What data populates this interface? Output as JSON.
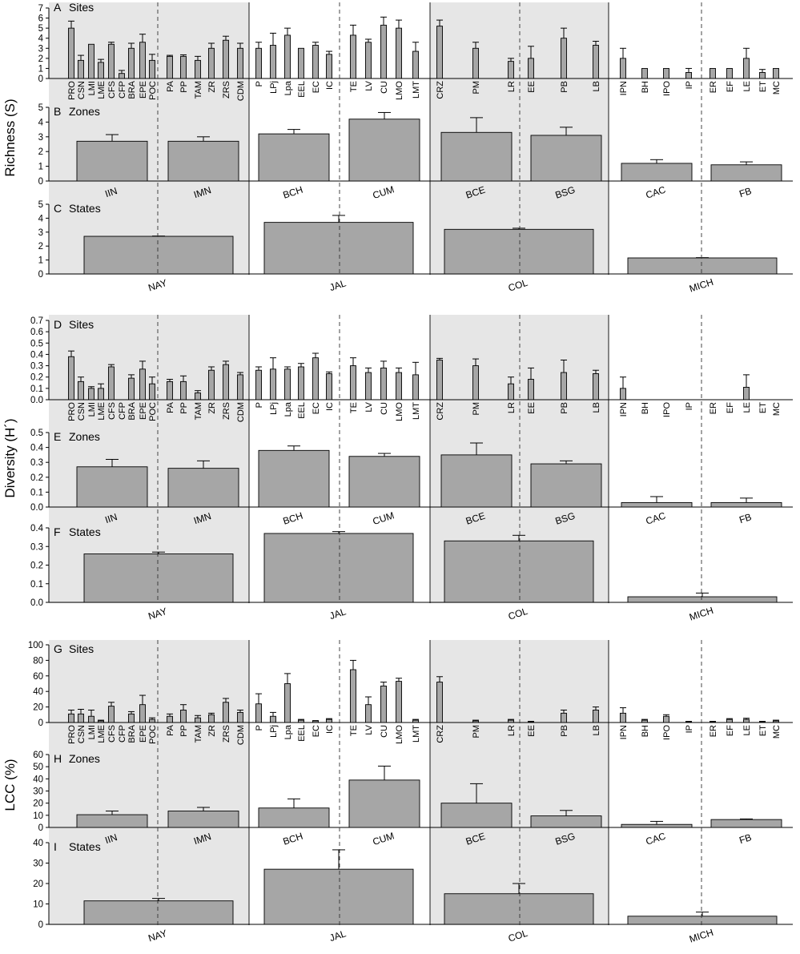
{
  "figure": {
    "ylabels": [
      "Richness (S)",
      "Diversity (H´)",
      "LCC (%)"
    ]
  },
  "style": {
    "bar_fill": "#a6a6a6",
    "shade": "#e6e6e6",
    "bar_stroke": "#000000"
  },
  "chart_data": [
    {
      "id": "A",
      "letter": "A",
      "label": "Sites",
      "level": "sites",
      "type": "bar",
      "group": 0,
      "ylim": [
        0,
        7
      ],
      "yticks": [
        0,
        1,
        2,
        3,
        4,
        5,
        6,
        7
      ],
      "categories": [
        "PRO",
        "CSN",
        "LMI",
        "LME",
        "CFS",
        "CFP",
        "BRA",
        "EPE",
        "POC",
        "PA",
        "PP",
        "TAM",
        "ZR",
        "ZRS",
        "CDM",
        "P",
        "LPj",
        "Lpa",
        "EEL",
        "EC",
        "IC",
        "TE",
        "LV",
        "CU",
        "LMO",
        "LMT",
        "CRZ",
        "PM",
        "LR",
        "EE",
        "PB",
        "LB",
        "IPN",
        "BH",
        "IPO",
        "IP",
        "ER",
        "EF",
        "LE",
        "ET",
        "MC"
      ],
      "values": [
        5.0,
        1.8,
        3.4,
        1.6,
        3.4,
        0.5,
        3.0,
        3.6,
        1.8,
        2.2,
        2.2,
        1.8,
        3.0,
        3.8,
        3.0,
        3.0,
        3.3,
        4.3,
        3.0,
        3.3,
        2.4,
        4.3,
        3.6,
        5.3,
        5.0,
        2.7,
        5.2,
        3.0,
        1.7,
        2.0,
        4.0,
        3.3,
        2.0,
        1.0,
        1.0,
        0.6,
        1.0,
        1.0,
        2.0,
        0.6,
        1.0
      ],
      "errors": [
        0.7,
        0.5,
        0.0,
        0.3,
        0.2,
        0.3,
        0.5,
        0.8,
        0.6,
        0.1,
        0.15,
        0.4,
        0.5,
        0.4,
        0.5,
        0.6,
        1.2,
        0.7,
        0.0,
        0.3,
        0.3,
        1.0,
        0.3,
        0.8,
        0.8,
        0.9,
        0.6,
        0.6,
        0.3,
        1.2,
        1.0,
        0.4,
        1.0,
        0.0,
        0.0,
        0.4,
        0.0,
        0.0,
        1.0,
        0.3,
        0.0
      ]
    },
    {
      "id": "B",
      "letter": "B",
      "label": "Zones",
      "level": "zones",
      "type": "bar",
      "group": 0,
      "ylim": [
        0,
        5
      ],
      "yticks": [
        0,
        1,
        2,
        3,
        4,
        5
      ],
      "categories": [
        "IIN",
        "IMN",
        "BCH",
        "CUM",
        "BCE",
        "BSG",
        "CAC",
        "FB"
      ],
      "values": [
        2.7,
        2.7,
        3.2,
        4.2,
        3.3,
        3.1,
        1.2,
        1.1
      ],
      "errors": [
        0.45,
        0.3,
        0.3,
        0.45,
        1.0,
        0.55,
        0.25,
        0.2
      ]
    },
    {
      "id": "C",
      "letter": "C",
      "label": "States",
      "level": "states",
      "type": "bar",
      "group": 0,
      "ylim": [
        0,
        5
      ],
      "yticks": [
        0,
        1,
        2,
        3,
        4,
        5
      ],
      "categories": [
        "NAY",
        "JAL",
        "COL",
        "MICH"
      ],
      "values": [
        2.7,
        3.7,
        3.2,
        1.15
      ],
      "errors": [
        0.02,
        0.5,
        0.08,
        0.02
      ]
    },
    {
      "id": "D",
      "letter": "D",
      "label": "Sites",
      "level": "sites",
      "type": "bar",
      "group": 1,
      "ylim": [
        0,
        0.7
      ],
      "yticks": [
        0,
        0.1,
        0.2,
        0.3,
        0.4,
        0.5,
        0.6,
        0.7
      ],
      "categories": [
        "PRO",
        "CSN",
        "LMI",
        "LME",
        "CFS",
        "CFP",
        "BRA",
        "EPE",
        "POC",
        "PA",
        "PP",
        "TAM",
        "ZR",
        "ZRS",
        "CDM",
        "P",
        "LPj",
        "Lpa",
        "EEL",
        "EC",
        "IC",
        "TE",
        "LV",
        "CU",
        "LMO",
        "LMT",
        "CRZ",
        "PM",
        "LR",
        "EE",
        "PB",
        "LB",
        "IPN",
        "BH",
        "IPO",
        "IP",
        "ER",
        "EF",
        "LE",
        "ET",
        "MC"
      ],
      "values": [
        0.38,
        0.16,
        0.1,
        0.1,
        0.29,
        0,
        0.19,
        0.27,
        0.14,
        0.16,
        0.16,
        0.06,
        0.26,
        0.31,
        0.22,
        0.26,
        0.27,
        0.27,
        0.29,
        0.37,
        0.23,
        0.3,
        0.24,
        0.28,
        0.24,
        0.22,
        0.35,
        0.3,
        0.14,
        0.18,
        0.24,
        0.23,
        0.1,
        0,
        0,
        0,
        0,
        0,
        0.11,
        0,
        0
      ],
      "errors": [
        0.05,
        0.04,
        0.015,
        0.04,
        0.02,
        0,
        0.03,
        0.07,
        0.06,
        0.02,
        0.05,
        0.02,
        0.03,
        0.03,
        0.02,
        0.03,
        0.1,
        0.02,
        0.03,
        0.04,
        0.015,
        0.07,
        0.04,
        0.06,
        0.04,
        0.11,
        0.015,
        0.06,
        0.06,
        0.1,
        0.11,
        0.03,
        0.1,
        0,
        0,
        0,
        0,
        0,
        0.11,
        0,
        0
      ]
    },
    {
      "id": "E",
      "letter": "E",
      "label": "Zones",
      "level": "zones",
      "type": "bar",
      "group": 1,
      "ylim": [
        0,
        0.5
      ],
      "yticks": [
        0,
        0.1,
        0.2,
        0.3,
        0.4,
        0.5
      ],
      "categories": [
        "IIN",
        "IMN",
        "BCH",
        "CUM",
        "BCE",
        "BSG",
        "CAC",
        "FB"
      ],
      "values": [
        0.27,
        0.26,
        0.38,
        0.34,
        0.35,
        0.29,
        0.03,
        0.03
      ],
      "errors": [
        0.05,
        0.05,
        0.03,
        0.02,
        0.08,
        0.02,
        0.04,
        0.03
      ]
    },
    {
      "id": "F",
      "letter": "F",
      "label": "States",
      "level": "states",
      "type": "bar",
      "group": 1,
      "ylim": [
        0,
        0.4
      ],
      "yticks": [
        0,
        0.1,
        0.2,
        0.3,
        0.4
      ],
      "categories": [
        "NAY",
        "JAL",
        "COL",
        "MICH"
      ],
      "values": [
        0.26,
        0.37,
        0.33,
        0.03
      ],
      "errors": [
        0.01,
        0.01,
        0.03,
        0.02
      ]
    },
    {
      "id": "G",
      "letter": "G",
      "label": "Sites",
      "level": "sites",
      "type": "bar",
      "group": 2,
      "ylim": [
        0,
        100
      ],
      "yticks": [
        0,
        20,
        40,
        60,
        80,
        100
      ],
      "categories": [
        "PRO",
        "CSN",
        "LMI",
        "LME",
        "CFS",
        "CFP",
        "BRA",
        "EPE",
        "POC",
        "PA",
        "PP",
        "TAM",
        "ZR",
        "ZRS",
        "CDM",
        "P",
        "LPj",
        "Lpa",
        "EEL",
        "EC",
        "IC",
        "TE",
        "LV",
        "CU",
        "LMO",
        "LMT",
        "CRZ",
        "PM",
        "LR",
        "EE",
        "PB",
        "LB",
        "IPN",
        "BH",
        "IPO",
        "IP",
        "ER",
        "EF",
        "LE",
        "ET",
        "MC"
      ],
      "values": [
        11,
        11,
        8,
        2,
        21,
        0,
        11,
        23,
        4,
        8,
        16,
        6,
        10,
        26,
        13,
        24,
        8,
        50,
        3,
        2,
        4,
        68,
        23,
        47,
        53,
        3,
        52,
        2,
        3,
        1,
        12,
        16,
        12,
        3,
        8,
        1,
        1,
        4,
        4,
        1,
        2
      ],
      "errors": [
        5,
        6,
        8,
        1,
        5,
        0,
        3,
        12,
        2,
        3,
        7,
        3,
        2,
        5,
        3,
        13,
        5,
        13,
        1,
        0.5,
        1,
        12,
        10,
        5,
        4,
        1,
        7,
        1,
        1,
        0.5,
        4,
        4,
        7,
        1,
        2,
        0.5,
        0.5,
        1,
        1.5,
        0.5,
        1
      ]
    },
    {
      "id": "H",
      "letter": "H",
      "label": "Zones",
      "level": "zones",
      "type": "bar",
      "group": 2,
      "ylim": [
        0,
        60
      ],
      "yticks": [
        0,
        10,
        20,
        30,
        40,
        50,
        60
      ],
      "categories": [
        "IIN",
        "IMN",
        "BCH",
        "CUM",
        "BCE",
        "BSG",
        "CAC",
        "FB"
      ],
      "values": [
        10.5,
        13.5,
        16,
        39,
        20,
        9.5,
        2.5,
        6.5
      ],
      "errors": [
        3,
        3,
        7.5,
        11.5,
        16,
        4.5,
        2.5,
        0.5
      ]
    },
    {
      "id": "I",
      "letter": "I",
      "label": "States",
      "level": "states",
      "type": "bar",
      "group": 2,
      "ylim": [
        0,
        40
      ],
      "yticks": [
        0,
        10,
        20,
        30,
        40
      ],
      "categories": [
        "NAY",
        "JAL",
        "COL",
        "MICH"
      ],
      "values": [
        11.5,
        27,
        15,
        4
      ],
      "errors": [
        1.2,
        9.5,
        5,
        2
      ]
    }
  ]
}
